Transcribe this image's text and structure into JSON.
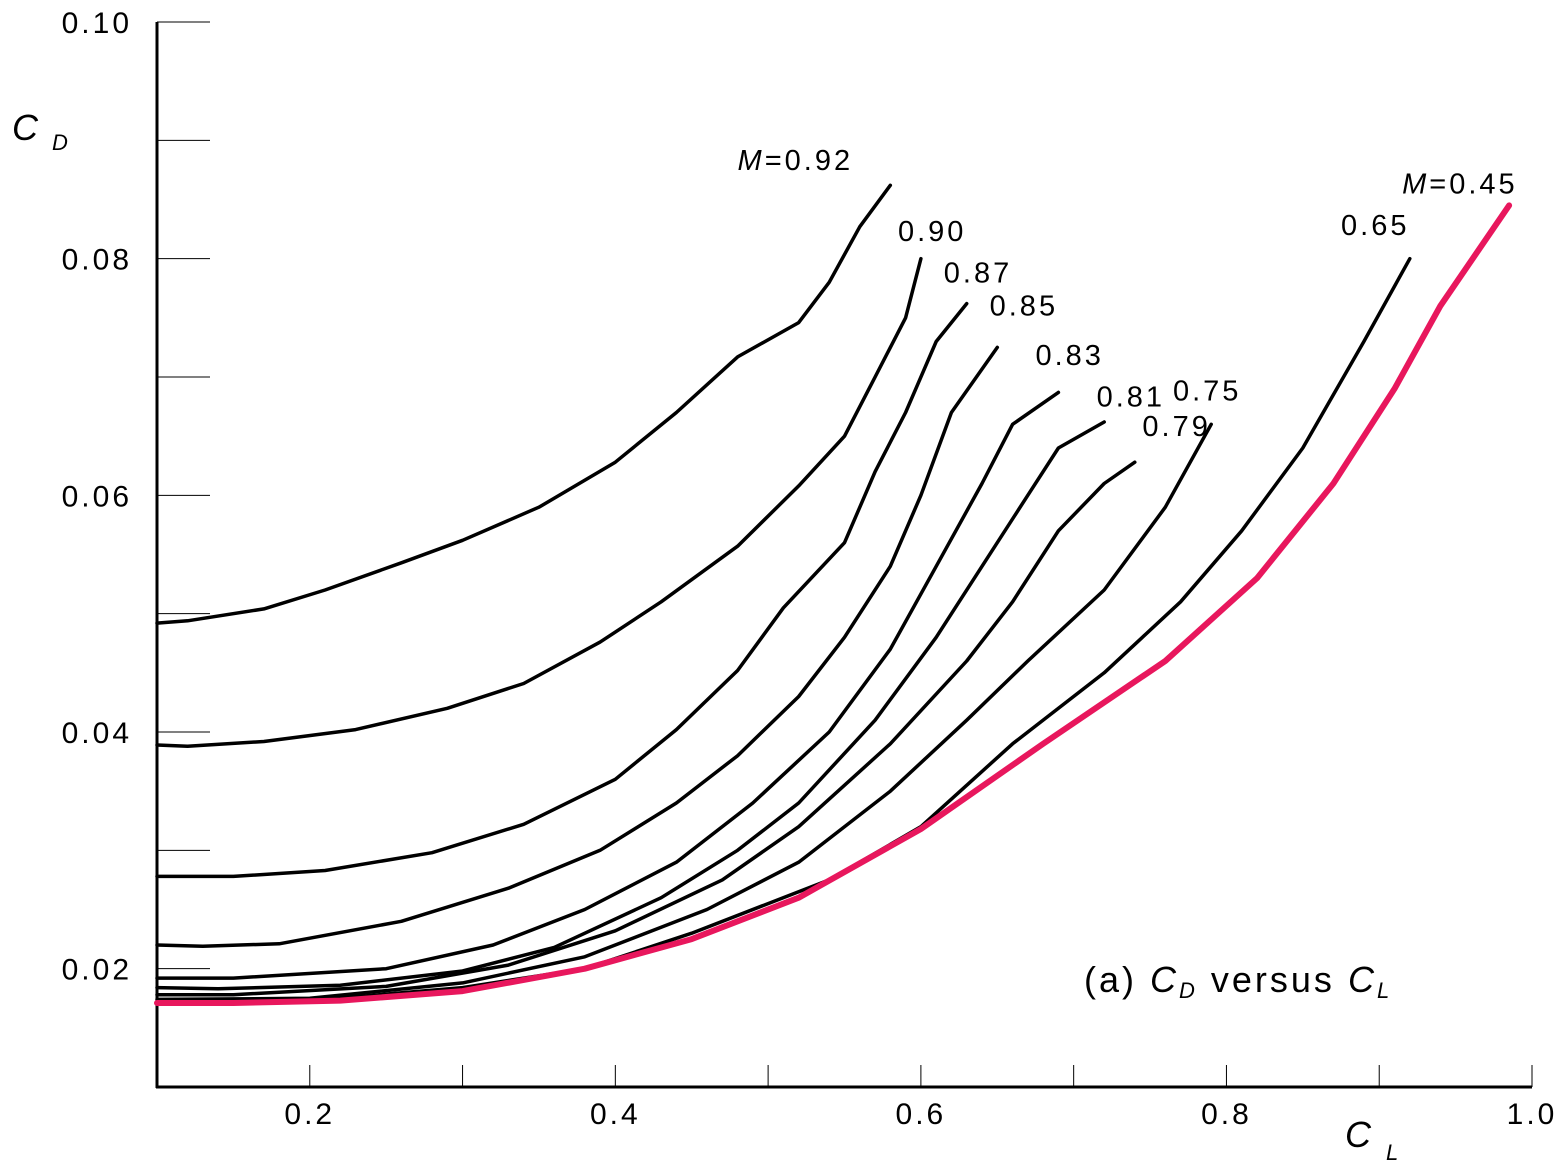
{
  "chart_data": {
    "type": "line",
    "xlabel": "C",
    "xlabel_sub": "L",
    "ylabel": "C",
    "ylabel_sub": "D",
    "xlim": [
      0.1,
      1.0
    ],
    "ylim": [
      0.01,
      0.1
    ],
    "x_ticks": [
      {
        "value": 0.2,
        "label": "0.2"
      },
      {
        "value": 0.4,
        "label": "0.4"
      },
      {
        "value": 0.6,
        "label": "0.6"
      },
      {
        "value": 0.8,
        "label": "0.8"
      },
      {
        "value": 1.0,
        "label": "1.0"
      }
    ],
    "x_minor_ticks": [
      0.2,
      0.3,
      0.4,
      0.5,
      0.6,
      0.7,
      0.8,
      0.9,
      1.0
    ],
    "y_ticks": [
      {
        "value": 0.02,
        "label": "0.02"
      },
      {
        "value": 0.04,
        "label": "0.04"
      },
      {
        "value": 0.06,
        "label": "0.06"
      },
      {
        "value": 0.08,
        "label": "0.08"
      },
      {
        "value": 0.1,
        "label": "0.10"
      }
    ],
    "y_minor_ticks": [
      0.02,
      0.03,
      0.04,
      0.05,
      0.06,
      0.07,
      0.08,
      0.09,
      0.1
    ],
    "caption": {
      "prefix": "(a) ",
      "y_symbol": "C",
      "y_sub": "D",
      "middle": " versus ",
      "x_symbol": "C",
      "x_sub": "L"
    },
    "grid": false,
    "legend": "none",
    "series": [
      {
        "name": "M=0.92",
        "label_prefix": "M",
        "label_rest": "=0.92",
        "color": "#000000",
        "points": [
          [
            0.1,
            0.0492
          ],
          [
            0.12,
            0.0494
          ],
          [
            0.17,
            0.0504
          ],
          [
            0.21,
            0.052
          ],
          [
            0.26,
            0.0543
          ],
          [
            0.3,
            0.0562
          ],
          [
            0.35,
            0.059
          ],
          [
            0.4,
            0.0628
          ],
          [
            0.44,
            0.067
          ],
          [
            0.48,
            0.0717
          ],
          [
            0.52,
            0.0746
          ],
          [
            0.54,
            0.078
          ],
          [
            0.56,
            0.0827
          ],
          [
            0.58,
            0.0862
          ]
        ],
        "label_at": [
          0.48,
          0.0875
        ]
      },
      {
        "name": "0.90",
        "label_rest": "0.90",
        "color": "#000000",
        "points": [
          [
            0.1,
            0.0389
          ],
          [
            0.12,
            0.0388
          ],
          [
            0.17,
            0.0392
          ],
          [
            0.23,
            0.0402
          ],
          [
            0.29,
            0.042
          ],
          [
            0.34,
            0.0441
          ],
          [
            0.39,
            0.0476
          ],
          [
            0.43,
            0.051
          ],
          [
            0.48,
            0.0557
          ],
          [
            0.52,
            0.0608
          ],
          [
            0.55,
            0.065
          ],
          [
            0.57,
            0.07
          ],
          [
            0.59,
            0.075
          ],
          [
            0.6,
            0.08
          ]
        ],
        "label_at": [
          0.585,
          0.0815
        ]
      },
      {
        "name": "0.87",
        "label_rest": "0.87",
        "color": "#000000",
        "points": [
          [
            0.1,
            0.0278
          ],
          [
            0.15,
            0.0278
          ],
          [
            0.21,
            0.0283
          ],
          [
            0.28,
            0.0298
          ],
          [
            0.34,
            0.0322
          ],
          [
            0.4,
            0.036
          ],
          [
            0.44,
            0.0402
          ],
          [
            0.48,
            0.0452
          ],
          [
            0.51,
            0.0505
          ],
          [
            0.55,
            0.056
          ],
          [
            0.57,
            0.062
          ],
          [
            0.59,
            0.067
          ],
          [
            0.61,
            0.073
          ],
          [
            0.63,
            0.0762
          ]
        ],
        "label_at": [
          0.615,
          0.078
        ]
      },
      {
        "name": "0.85",
        "label_rest": "0.85",
        "color": "#000000",
        "points": [
          [
            0.1,
            0.022
          ],
          [
            0.13,
            0.0219
          ],
          [
            0.18,
            0.0221
          ],
          [
            0.26,
            0.024
          ],
          [
            0.33,
            0.0268
          ],
          [
            0.39,
            0.03
          ],
          [
            0.44,
            0.034
          ],
          [
            0.48,
            0.038
          ],
          [
            0.52,
            0.043
          ],
          [
            0.55,
            0.048
          ],
          [
            0.58,
            0.054
          ],
          [
            0.6,
            0.06
          ],
          [
            0.62,
            0.067
          ],
          [
            0.65,
            0.0725
          ]
        ],
        "label_at": [
          0.645,
          0.0752
        ]
      },
      {
        "name": "0.83",
        "label_rest": "0.83",
        "color": "#000000",
        "points": [
          [
            0.1,
            0.0192
          ],
          [
            0.15,
            0.0192
          ],
          [
            0.25,
            0.02
          ],
          [
            0.32,
            0.022
          ],
          [
            0.38,
            0.025
          ],
          [
            0.44,
            0.029
          ],
          [
            0.49,
            0.034
          ],
          [
            0.54,
            0.04
          ],
          [
            0.58,
            0.047
          ],
          [
            0.61,
            0.054
          ],
          [
            0.64,
            0.061
          ],
          [
            0.66,
            0.066
          ],
          [
            0.69,
            0.0687
          ]
        ],
        "label_at": [
          0.675,
          0.071
        ]
      },
      {
        "name": "0.81",
        "label_rest": "0.81",
        "color": "#000000",
        "points": [
          [
            0.1,
            0.0184
          ],
          [
            0.14,
            0.0183
          ],
          [
            0.22,
            0.0186
          ],
          [
            0.3,
            0.0198
          ],
          [
            0.36,
            0.0218
          ],
          [
            0.43,
            0.026
          ],
          [
            0.48,
            0.03
          ],
          [
            0.52,
            0.034
          ],
          [
            0.57,
            0.041
          ],
          [
            0.61,
            0.048
          ],
          [
            0.64,
            0.054
          ],
          [
            0.67,
            0.06
          ],
          [
            0.69,
            0.064
          ],
          [
            0.72,
            0.0662
          ]
        ],
        "label_at": [
          0.715,
          0.0675
        ]
      },
      {
        "name": "0.79",
        "label_rest": "0.79",
        "color": "#000000",
        "points": [
          [
            0.1,
            0.0178
          ],
          [
            0.15,
            0.0178
          ],
          [
            0.25,
            0.0185
          ],
          [
            0.33,
            0.0203
          ],
          [
            0.4,
            0.0232
          ],
          [
            0.47,
            0.0275
          ],
          [
            0.52,
            0.032
          ],
          [
            0.58,
            0.039
          ],
          [
            0.63,
            0.046
          ],
          [
            0.66,
            0.051
          ],
          [
            0.69,
            0.057
          ],
          [
            0.72,
            0.061
          ],
          [
            0.74,
            0.0628
          ]
        ],
        "label_at": [
          0.745,
          0.065
        ]
      },
      {
        "name": "0.75",
        "label_rest": "0.75",
        "color": "#000000",
        "points": [
          [
            0.1,
            0.0174
          ],
          [
            0.2,
            0.0175
          ],
          [
            0.3,
            0.0188
          ],
          [
            0.38,
            0.021
          ],
          [
            0.46,
            0.025
          ],
          [
            0.52,
            0.029
          ],
          [
            0.58,
            0.035
          ],
          [
            0.63,
            0.041
          ],
          [
            0.67,
            0.046
          ],
          [
            0.72,
            0.052
          ],
          [
            0.76,
            0.059
          ],
          [
            0.79,
            0.066
          ]
        ],
        "label_at": [
          0.765,
          0.068
        ]
      },
      {
        "name": "0.65",
        "label_rest": "0.65",
        "color": "#000000",
        "points": [
          [
            0.1,
            0.0172
          ],
          [
            0.2,
            0.0173
          ],
          [
            0.3,
            0.0184
          ],
          [
            0.38,
            0.02
          ],
          [
            0.45,
            0.023
          ],
          [
            0.54,
            0.0275
          ],
          [
            0.6,
            0.032
          ],
          [
            0.66,
            0.039
          ],
          [
            0.72,
            0.045
          ],
          [
            0.77,
            0.051
          ],
          [
            0.81,
            0.057
          ],
          [
            0.85,
            0.064
          ],
          [
            0.89,
            0.073
          ],
          [
            0.92,
            0.08
          ]
        ],
        "label_at": [
          0.875,
          0.082
        ]
      },
      {
        "name": "M=0.45",
        "label_prefix": "M",
        "label_rest": "=0.45",
        "color": "#e8175d",
        "points": [
          [
            0.1,
            0.0171
          ],
          [
            0.15,
            0.0171
          ],
          [
            0.22,
            0.0173
          ],
          [
            0.3,
            0.0181
          ],
          [
            0.38,
            0.02
          ],
          [
            0.45,
            0.0225
          ],
          [
            0.52,
            0.026
          ],
          [
            0.6,
            0.0318
          ],
          [
            0.68,
            0.039
          ],
          [
            0.76,
            0.046
          ],
          [
            0.82,
            0.053
          ],
          [
            0.87,
            0.061
          ],
          [
            0.91,
            0.069
          ],
          [
            0.94,
            0.076
          ],
          [
            0.985,
            0.0845
          ]
        ],
        "label_at": [
          0.915,
          0.0855
        ]
      }
    ]
  }
}
